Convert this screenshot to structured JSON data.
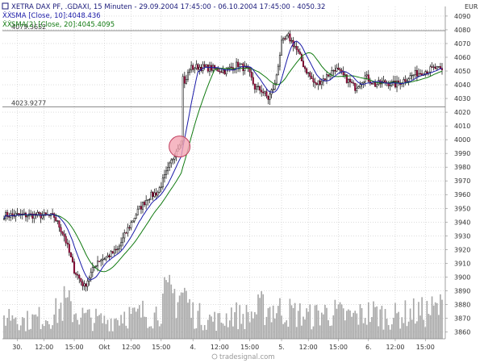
{
  "chart_data": {
    "type": "candlestick",
    "title": "XETRA DAX PF, .GDAXI, 15 Minuten - 29.09.2004 17:45:00 - 06.10.2004 17:45:00 - 4050.32",
    "currency": "EUR",
    "legend": [
      {
        "label": "SMA [Close, 10]:4048.436",
        "color": "#1a1aa8"
      },
      {
        "label": "SMA(2) [Close, 20]:4045.4095",
        "color": "#117a11"
      }
    ],
    "ylim": [
      3855,
      4097
    ],
    "y_ticks": [
      4090,
      4080,
      4070,
      4060,
      4050,
      4040,
      4030,
      4020,
      4010,
      4000,
      3990,
      3980,
      3970,
      3960,
      3950,
      3940,
      3930,
      3920,
      3910,
      3900,
      3890,
      3880,
      3870,
      3860
    ],
    "x_ticks": [
      {
        "label": "30.",
        "i": 8
      },
      {
        "label": "12:00",
        "i": 24
      },
      {
        "label": "15:00",
        "i": 42
      },
      {
        "label": "Okt",
        "i": 60
      },
      {
        "label": "12:00",
        "i": 76
      },
      {
        "label": "15:00",
        "i": 94
      },
      {
        "label": "4.",
        "i": 113
      },
      {
        "label": "12:00",
        "i": 129
      },
      {
        "label": "15:00",
        "i": 147
      },
      {
        "label": "5.",
        "i": 166
      },
      {
        "label": "12:00",
        "i": 182
      },
      {
        "label": "15:00",
        "i": 200
      },
      {
        "label": "6.",
        "i": 218
      },
      {
        "label": "12:00",
        "i": 234
      },
      {
        "label": "15:00",
        "i": 252
      }
    ],
    "hlines": [
      {
        "label": "4079.3652",
        "value": 4079.3652
      },
      {
        "label": "4023.9277",
        "value": 4023.9277
      }
    ],
    "annotation": {
      "type": "circle",
      "i": 105,
      "value": 3995
    },
    "footer": "tradesignal.com",
    "anchors_close": [
      [
        0,
        3945
      ],
      [
        10,
        3945
      ],
      [
        20,
        3945
      ],
      [
        30,
        3944
      ],
      [
        36,
        3930
      ],
      [
        42,
        3905
      ],
      [
        48,
        3893
      ],
      [
        56,
        3912
      ],
      [
        62,
        3915
      ],
      [
        68,
        3920
      ],
      [
        74,
        3935
      ],
      [
        80,
        3948
      ],
      [
        86,
        3958
      ],
      [
        92,
        3962
      ],
      [
        98,
        3978
      ],
      [
        102,
        3990
      ],
      [
        105,
        3998
      ],
      [
        106,
        4000
      ],
      [
        108,
        4040
      ],
      [
        111,
        4052
      ],
      [
        116,
        4053
      ],
      [
        124,
        4052
      ],
      [
        132,
        4050
      ],
      [
        140,
        4055
      ],
      [
        146,
        4050
      ],
      [
        150,
        4038
      ],
      [
        154,
        4036
      ],
      [
        158,
        4030
      ],
      [
        162,
        4040
      ],
      [
        166,
        4070
      ],
      [
        170,
        4075
      ],
      [
        174,
        4068
      ],
      [
        180,
        4052
      ],
      [
        186,
        4040
      ],
      [
        192,
        4045
      ],
      [
        198,
        4052
      ],
      [
        204,
        4045
      ],
      [
        210,
        4038
      ],
      [
        216,
        4046
      ],
      [
        222,
        4040
      ],
      [
        228,
        4042
      ],
      [
        234,
        4040
      ],
      [
        240,
        4044
      ],
      [
        246,
        4048
      ],
      [
        252,
        4050
      ],
      [
        258,
        4052
      ],
      [
        262,
        4050
      ]
    ],
    "anchors_volume": [
      [
        0,
        10
      ],
      [
        6,
        12
      ],
      [
        12,
        8
      ],
      [
        18,
        9
      ],
      [
        24,
        10
      ],
      [
        30,
        11
      ],
      [
        36,
        16
      ],
      [
        42,
        13
      ],
      [
        48,
        10
      ],
      [
        54,
        9
      ],
      [
        60,
        8
      ],
      [
        66,
        9
      ],
      [
        72,
        12
      ],
      [
        78,
        10
      ],
      [
        84,
        12
      ],
      [
        90,
        11
      ],
      [
        96,
        18
      ],
      [
        102,
        20
      ],
      [
        108,
        21
      ],
      [
        112,
        12
      ],
      [
        118,
        10
      ],
      [
        124,
        9
      ],
      [
        130,
        8
      ],
      [
        136,
        12
      ],
      [
        142,
        10
      ],
      [
        148,
        11
      ],
      [
        154,
        14
      ],
      [
        160,
        14
      ],
      [
        166,
        13
      ],
      [
        172,
        12
      ],
      [
        178,
        11
      ],
      [
        184,
        10
      ],
      [
        190,
        12
      ],
      [
        196,
        12
      ],
      [
        202,
        11
      ],
      [
        208,
        10
      ],
      [
        214,
        11
      ],
      [
        220,
        12
      ],
      [
        226,
        11
      ],
      [
        232,
        10
      ],
      [
        238,
        11
      ],
      [
        244,
        12
      ],
      [
        250,
        12
      ],
      [
        256,
        13
      ],
      [
        262,
        14
      ]
    ],
    "n_bars": 263
  }
}
